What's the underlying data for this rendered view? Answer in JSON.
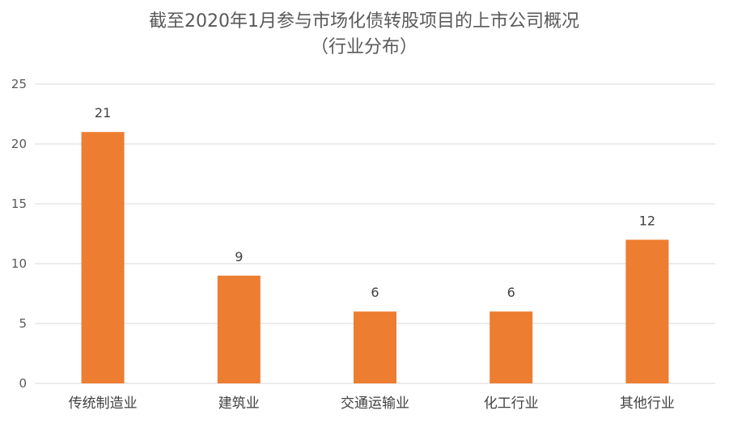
{
  "chart_data": {
    "type": "bar",
    "title": "截至2020年1月参与市场化债转股项目的上市公司概况",
    "subtitle": "（行业分布）",
    "categories": [
      "传统制造业",
      "建筑业",
      "交通运输业",
      "化工行业",
      "其他行业"
    ],
    "values": [
      21,
      9,
      6,
      6,
      12
    ],
    "ylim": [
      0,
      25
    ],
    "yticks": [
      0,
      5,
      10,
      15,
      20,
      25
    ],
    "grid": true,
    "legend": "none",
    "data_labels": true,
    "bar_color": "#ED7D31"
  }
}
